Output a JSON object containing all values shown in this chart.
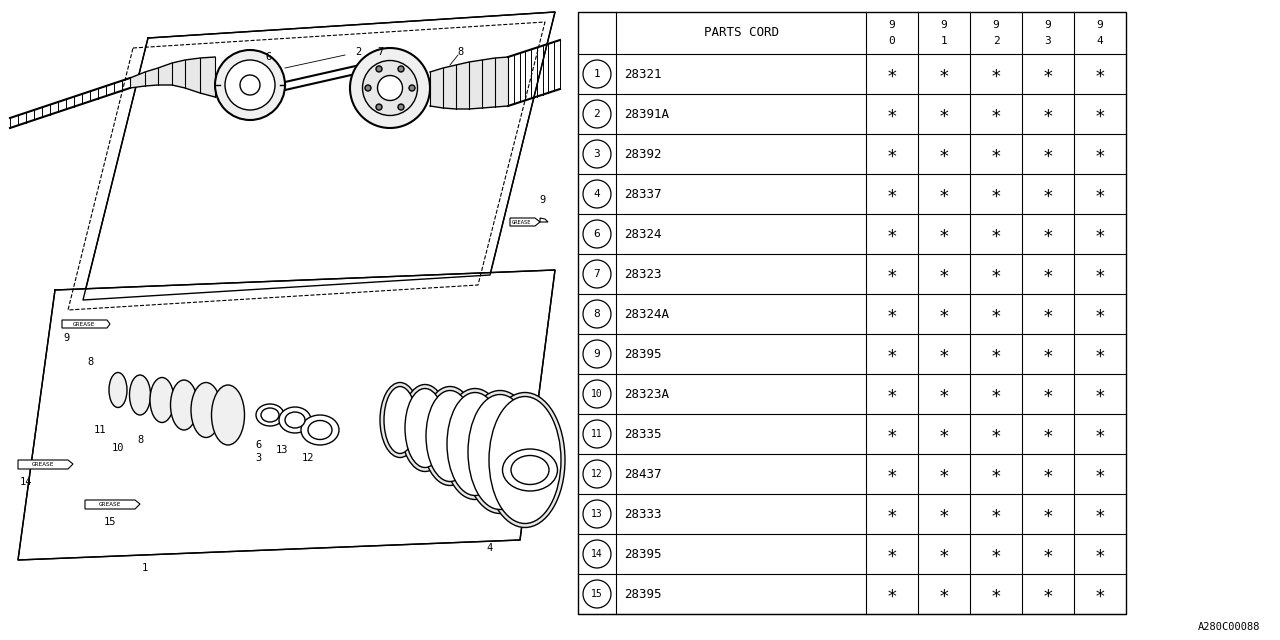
{
  "bg_color": "#ffffff",
  "rows": [
    [
      "1",
      "28321"
    ],
    [
      "2",
      "28391A"
    ],
    [
      "3",
      "28392"
    ],
    [
      "4",
      "28337"
    ],
    [
      "6",
      "28324"
    ],
    [
      "7",
      "28323"
    ],
    [
      "8",
      "28324A"
    ],
    [
      "9",
      "28395"
    ],
    [
      "10",
      "28323A"
    ],
    [
      "11",
      "28335"
    ],
    [
      "12",
      "28437"
    ],
    [
      "13",
      "28333"
    ],
    [
      "14",
      "28395"
    ],
    [
      "15",
      "28395"
    ]
  ],
  "diagram_label": "A280C00088",
  "star_char": "∗"
}
